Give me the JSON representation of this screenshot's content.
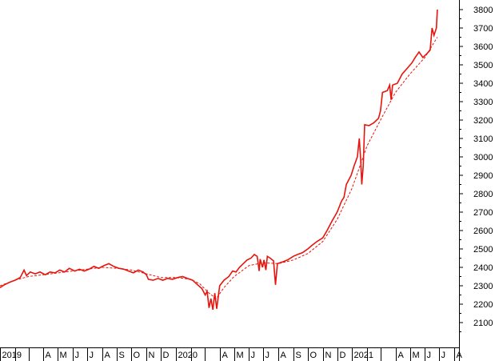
{
  "chart_data": {
    "type": "line",
    "title": "",
    "xlabel": "",
    "ylabel": "",
    "ylim": [
      2000,
      3830
    ],
    "xlim": [
      "2019-01-01",
      "2021-08-01"
    ],
    "y_axis_side": "right",
    "grid": false,
    "y_ticks": [
      2100,
      2200,
      2300,
      2400,
      2500,
      2600,
      2700,
      2800,
      2900,
      3000,
      3100,
      3200,
      3300,
      3400,
      3500,
      3600,
      3700,
      3800
    ],
    "x_ticks": [
      {
        "date": "2019-01-01",
        "label": "2019"
      },
      {
        "date": "2019-02-01",
        "label": ""
      },
      {
        "date": "2019-03-01",
        "label": ""
      },
      {
        "date": "2019-04-01",
        "label": "A"
      },
      {
        "date": "2019-05-01",
        "label": "M"
      },
      {
        "date": "2019-06-01",
        "label": "J"
      },
      {
        "date": "2019-07-01",
        "label": "J"
      },
      {
        "date": "2019-08-01",
        "label": "A"
      },
      {
        "date": "2019-09-01",
        "label": "S"
      },
      {
        "date": "2019-10-01",
        "label": "O"
      },
      {
        "date": "2019-11-01",
        "label": "N"
      },
      {
        "date": "2019-12-01",
        "label": "D"
      },
      {
        "date": "2020-01-01",
        "label": "2020"
      },
      {
        "date": "2020-02-01",
        "label": ""
      },
      {
        "date": "2020-03-01",
        "label": ""
      },
      {
        "date": "2020-04-01",
        "label": "A"
      },
      {
        "date": "2020-05-01",
        "label": "M"
      },
      {
        "date": "2020-06-01",
        "label": "J"
      },
      {
        "date": "2020-07-01",
        "label": "J"
      },
      {
        "date": "2020-08-01",
        "label": "A"
      },
      {
        "date": "2020-09-01",
        "label": "S"
      },
      {
        "date": "2020-10-01",
        "label": "O"
      },
      {
        "date": "2020-11-01",
        "label": "N"
      },
      {
        "date": "2020-12-01",
        "label": "D"
      },
      {
        "date": "2021-01-01",
        "label": "2021"
      },
      {
        "date": "2021-02-01",
        "label": ""
      },
      {
        "date": "2021-03-01",
        "label": ""
      },
      {
        "date": "2021-04-01",
        "label": "A"
      },
      {
        "date": "2021-05-01",
        "label": "M"
      },
      {
        "date": "2021-06-01",
        "label": "J"
      },
      {
        "date": "2021-07-01",
        "label": "J"
      },
      {
        "date": "2021-08-01",
        "label": "A"
      }
    ],
    "series": [
      {
        "style": "solid",
        "color": "#e8140c",
        "points": [
          [
            "2019-01-01",
            2290
          ],
          [
            "2019-01-10",
            2305
          ],
          [
            "2019-01-22",
            2320
          ],
          [
            "2019-02-01",
            2330
          ],
          [
            "2019-02-12",
            2345
          ],
          [
            "2019-02-20",
            2385
          ],
          [
            "2019-02-25",
            2355
          ],
          [
            "2019-03-05",
            2375
          ],
          [
            "2019-03-15",
            2365
          ],
          [
            "2019-03-25",
            2375
          ],
          [
            "2019-04-05",
            2360
          ],
          [
            "2019-04-15",
            2375
          ],
          [
            "2019-04-25",
            2370
          ],
          [
            "2019-05-05",
            2385
          ],
          [
            "2019-05-15",
            2375
          ],
          [
            "2019-05-25",
            2395
          ],
          [
            "2019-06-05",
            2380
          ],
          [
            "2019-06-15",
            2390
          ],
          [
            "2019-06-25",
            2380
          ],
          [
            "2019-07-05",
            2390
          ],
          [
            "2019-07-15",
            2405
          ],
          [
            "2019-07-25",
            2395
          ],
          [
            "2019-08-05",
            2410
          ],
          [
            "2019-08-15",
            2420
          ],
          [
            "2019-08-25",
            2405
          ],
          [
            "2019-09-05",
            2395
          ],
          [
            "2019-09-15",
            2390
          ],
          [
            "2019-09-25",
            2380
          ],
          [
            "2019-10-05",
            2370
          ],
          [
            "2019-10-15",
            2385
          ],
          [
            "2019-10-25",
            2375
          ],
          [
            "2019-11-01",
            2360
          ],
          [
            "2019-11-05",
            2335
          ],
          [
            "2019-11-15",
            2330
          ],
          [
            "2019-11-25",
            2340
          ],
          [
            "2019-12-05",
            2330
          ],
          [
            "2019-12-15",
            2340
          ],
          [
            "2019-12-25",
            2335
          ],
          [
            "2020-01-05",
            2345
          ],
          [
            "2020-01-15",
            2350
          ],
          [
            "2020-01-25",
            2340
          ],
          [
            "2020-02-05",
            2330
          ],
          [
            "2020-02-15",
            2305
          ],
          [
            "2020-02-24",
            2285
          ],
          [
            "2020-03-02",
            2250
          ],
          [
            "2020-03-06",
            2270
          ],
          [
            "2020-03-10",
            2180
          ],
          [
            "2020-03-14",
            2230
          ],
          [
            "2020-03-18",
            2170
          ],
          [
            "2020-03-22",
            2260
          ],
          [
            "2020-03-26",
            2175
          ],
          [
            "2020-04-01",
            2300
          ],
          [
            "2020-04-10",
            2330
          ],
          [
            "2020-04-20",
            2350
          ],
          [
            "2020-04-28",
            2380
          ],
          [
            "2020-05-05",
            2375
          ],
          [
            "2020-05-12",
            2400
          ],
          [
            "2020-05-20",
            2420
          ],
          [
            "2020-05-28",
            2440
          ],
          [
            "2020-06-05",
            2450
          ],
          [
            "2020-06-12",
            2470
          ],
          [
            "2020-06-18",
            2460
          ],
          [
            "2020-06-22",
            2380
          ],
          [
            "2020-06-24",
            2445
          ],
          [
            "2020-06-29",
            2400
          ],
          [
            "2020-07-02",
            2440
          ],
          [
            "2020-07-06",
            2385
          ],
          [
            "2020-07-09",
            2460
          ],
          [
            "2020-07-15",
            2450
          ],
          [
            "2020-07-22",
            2435
          ],
          [
            "2020-07-26",
            2305
          ],
          [
            "2020-07-30",
            2420
          ],
          [
            "2020-08-10",
            2430
          ],
          [
            "2020-08-20",
            2440
          ],
          [
            "2020-09-01",
            2460
          ],
          [
            "2020-09-10",
            2470
          ],
          [
            "2020-09-20",
            2480
          ],
          [
            "2020-10-01",
            2500
          ],
          [
            "2020-10-10",
            2520
          ],
          [
            "2020-10-20",
            2540
          ],
          [
            "2020-11-01",
            2560
          ],
          [
            "2020-11-10",
            2600
          ],
          [
            "2020-11-20",
            2650
          ],
          [
            "2020-12-01",
            2700
          ],
          [
            "2020-12-10",
            2760
          ],
          [
            "2020-12-15",
            2780
          ],
          [
            "2020-12-20",
            2850
          ],
          [
            "2020-12-30",
            2900
          ],
          [
            "2021-01-05",
            2950
          ],
          [
            "2021-01-12",
            3000
          ],
          [
            "2021-01-16",
            3100
          ],
          [
            "2021-01-19",
            2980
          ],
          [
            "2021-01-21",
            2850
          ],
          [
            "2021-01-24",
            2950
          ],
          [
            "2021-01-27",
            3175
          ],
          [
            "2021-02-05",
            3170
          ],
          [
            "2021-02-15",
            3185
          ],
          [
            "2021-02-25",
            3210
          ],
          [
            "2021-03-01",
            3250
          ],
          [
            "2021-03-05",
            3350
          ],
          [
            "2021-03-15",
            3360
          ],
          [
            "2021-03-20",
            3390
          ],
          [
            "2021-03-23",
            3310
          ],
          [
            "2021-03-26",
            3390
          ],
          [
            "2021-04-05",
            3400
          ],
          [
            "2021-04-15",
            3450
          ],
          [
            "2021-04-25",
            3480
          ],
          [
            "2021-05-05",
            3510
          ],
          [
            "2021-05-12",
            3540
          ],
          [
            "2021-05-20",
            3570
          ],
          [
            "2021-05-28",
            3540
          ],
          [
            "2021-06-05",
            3560
          ],
          [
            "2021-06-12",
            3580
          ],
          [
            "2021-06-16",
            3700
          ],
          [
            "2021-06-20",
            3660
          ],
          [
            "2021-06-25",
            3700
          ],
          [
            "2021-06-27",
            3800
          ]
        ]
      },
      {
        "style": "dashed",
        "color": "#e8140c",
        "points": [
          [
            "2019-01-01",
            2300
          ],
          [
            "2019-02-01",
            2330
          ],
          [
            "2019-03-01",
            2350
          ],
          [
            "2019-04-01",
            2360
          ],
          [
            "2019-05-01",
            2370
          ],
          [
            "2019-06-01",
            2380
          ],
          [
            "2019-07-01",
            2390
          ],
          [
            "2019-08-01",
            2400
          ],
          [
            "2019-09-01",
            2395
          ],
          [
            "2019-10-01",
            2385
          ],
          [
            "2019-11-01",
            2365
          ],
          [
            "2019-12-01",
            2345
          ],
          [
            "2020-01-01",
            2345
          ],
          [
            "2020-02-01",
            2335
          ],
          [
            "2020-02-20",
            2310
          ],
          [
            "2020-03-10",
            2260
          ],
          [
            "2020-03-25",
            2230
          ],
          [
            "2020-04-10",
            2290
          ],
          [
            "2020-05-01",
            2350
          ],
          [
            "2020-06-01",
            2410
          ],
          [
            "2020-07-01",
            2425
          ],
          [
            "2020-08-01",
            2420
          ],
          [
            "2020-09-01",
            2440
          ],
          [
            "2020-10-01",
            2475
          ],
          [
            "2020-11-01",
            2540
          ],
          [
            "2020-12-01",
            2660
          ],
          [
            "2021-01-01",
            2830
          ],
          [
            "2021-02-01",
            3060
          ],
          [
            "2021-03-01",
            3200
          ],
          [
            "2021-04-01",
            3350
          ],
          [
            "2021-05-01",
            3450
          ],
          [
            "2021-06-01",
            3540
          ],
          [
            "2021-06-27",
            3650
          ]
        ]
      }
    ]
  }
}
